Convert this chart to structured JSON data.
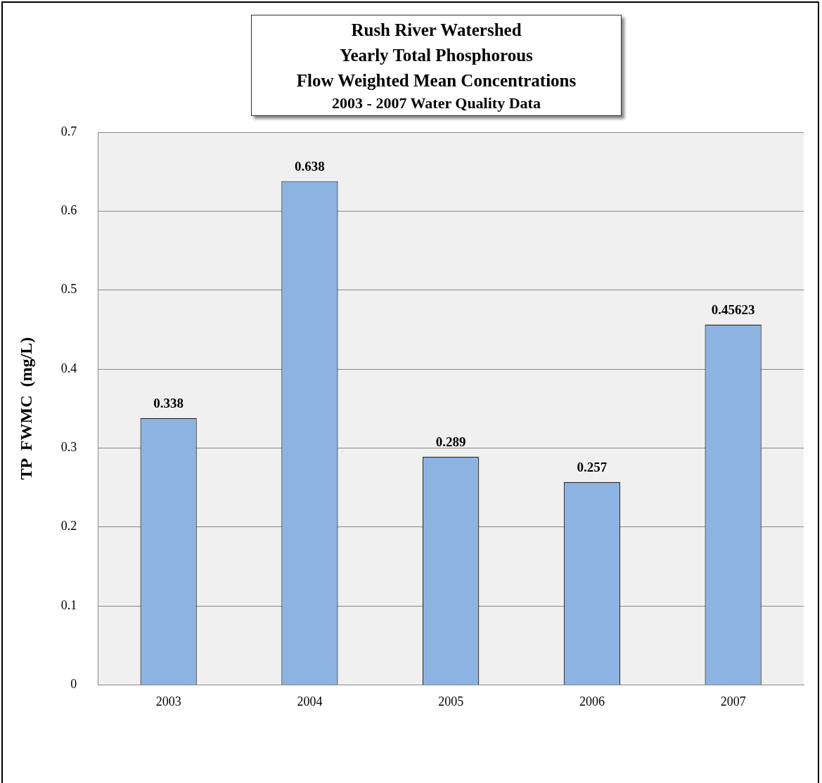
{
  "chart_data": {
    "type": "bar",
    "title": "Rush River Watershed\nYearly Total Phosphorous\nFlow Weighted Mean Concentrations",
    "subtitle": "2003 - 2007 Water Quality Data",
    "ylabel": "TP  FWMC  (mg/L)",
    "categories": [
      "2003",
      "2004",
      "2005",
      "2006",
      "2007"
    ],
    "values": [
      0.338,
      0.638,
      0.289,
      0.257,
      0.45623
    ],
    "color": "#8db3e2",
    "ylim": [
      0,
      0.7
    ],
    "yticks": [
      0,
      0.1,
      0.2,
      0.3,
      0.4,
      0.5,
      0.6,
      0.7
    ],
    "grid": "y",
    "legend": false,
    "data_labels": true
  }
}
